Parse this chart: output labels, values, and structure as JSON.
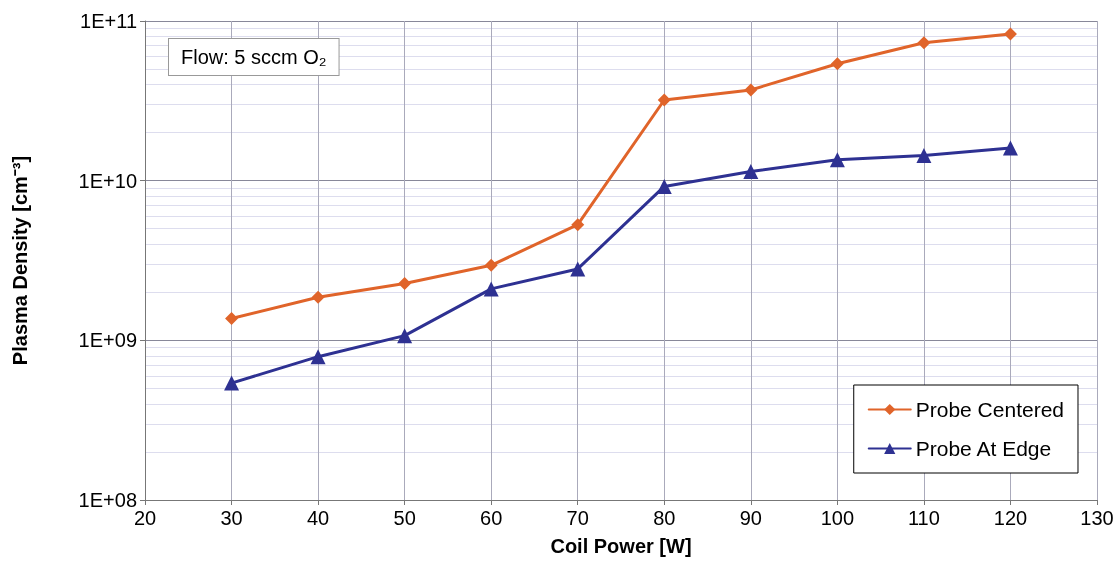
{
  "chart_data": {
    "type": "line",
    "xlabel": "Coil Power [W]",
    "ylabel": "Plasma Density [cm⁻³]",
    "annotations": [
      "Flow: 5 sccm O₂"
    ],
    "x": [
      30,
      40,
      50,
      60,
      70,
      80,
      90,
      100,
      110,
      120
    ],
    "series": [
      {
        "name": "Probe Centered",
        "color": "#e0642a",
        "marker": "diamond",
        "values": [
          1370000000.0,
          1860000000.0,
          2270000000.0,
          2950000000.0,
          5300000000.0,
          32000000000.0,
          37000000000.0,
          54000000000.0,
          73000000000.0,
          83000000000.0
        ]
      },
      {
        "name": "Probe At Edge",
        "color": "#2e3192",
        "marker": "triangle",
        "values": [
          540000000.0,
          790000000.0,
          1070000000.0,
          2100000000.0,
          2800000000.0,
          9200000000.0,
          11400000000.0,
          13500000000.0,
          14400000000.0,
          16000000000.0
        ]
      }
    ],
    "xlim": [
      20,
      130
    ],
    "xticks": [
      20,
      30,
      40,
      50,
      60,
      70,
      80,
      90,
      100,
      110,
      120,
      130
    ],
    "ylim": [
      100000000.0,
      100000000000.0
    ],
    "yticks": [
      {
        "value": 100000000.0,
        "label": "1E+08"
      },
      {
        "value": 1000000000.0,
        "label": "1E+09"
      },
      {
        "value": 10000000000.0,
        "label": "1E+10"
      },
      {
        "value": 100000000000.0,
        "label": "1E+11"
      }
    ],
    "log": "y",
    "grid": true,
    "legend": "bottom right",
    "line_style": "solid"
  }
}
